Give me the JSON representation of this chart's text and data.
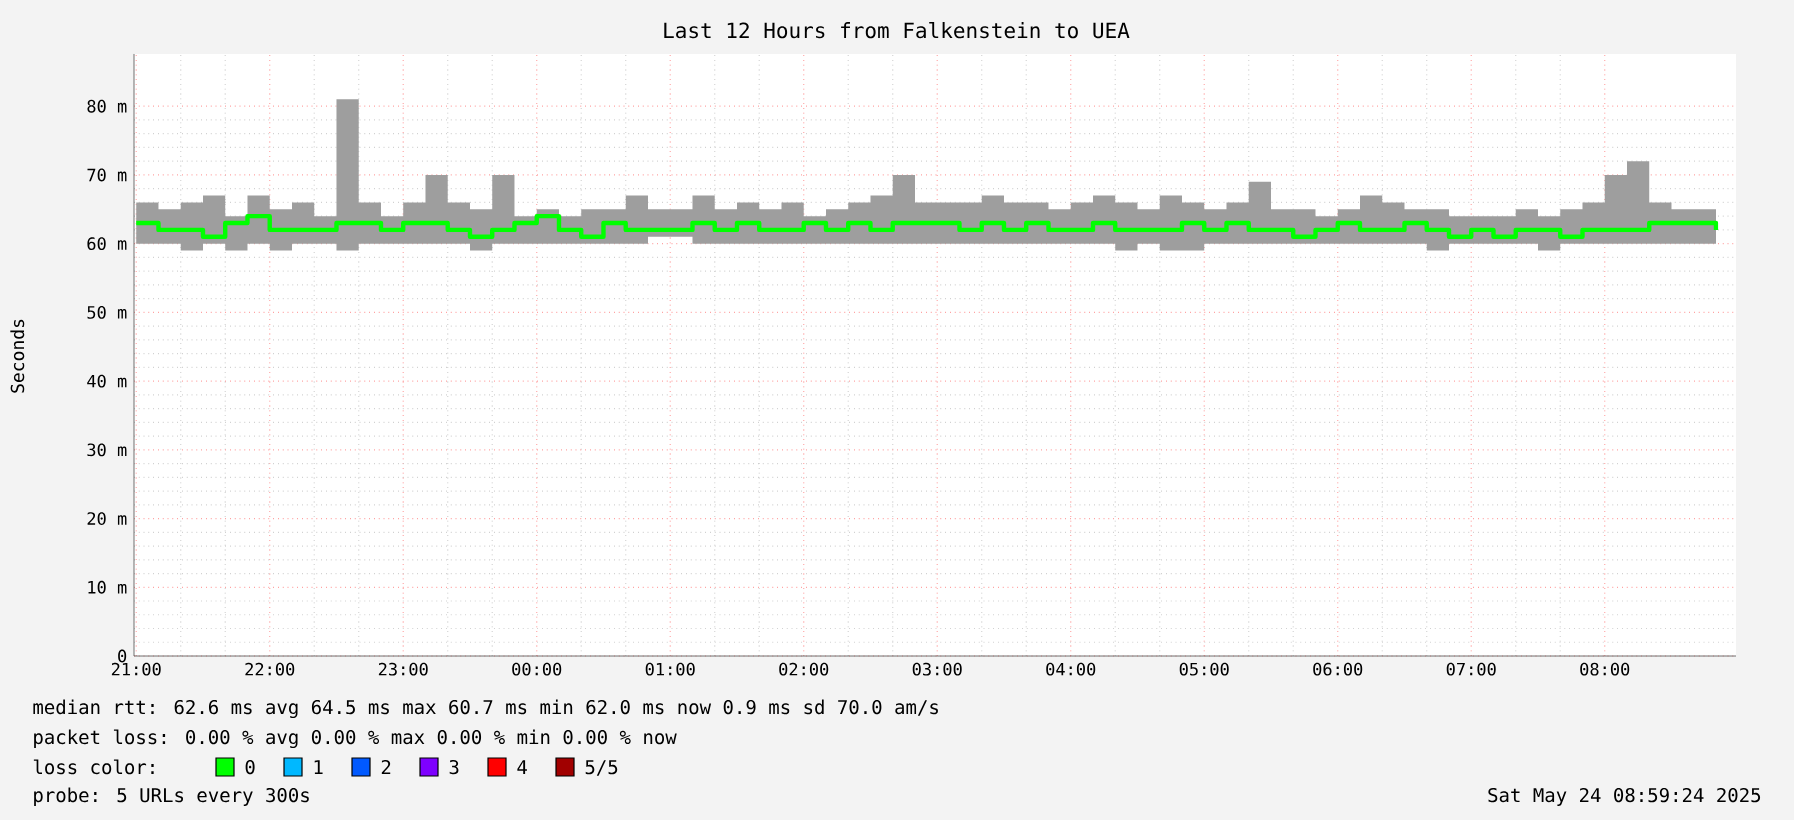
{
  "chart_data": {
    "type": "step",
    "title": "Last 12 Hours from Falkenstein to UEA",
    "ylabel": "Seconds",
    "x": [
      "2025-05-23T21:00",
      "2025-05-23T21:10",
      "2025-05-23T21:20",
      "2025-05-23T21:30",
      "2025-05-23T21:40",
      "2025-05-23T21:50",
      "2025-05-23T22:00",
      "2025-05-23T22:10",
      "2025-05-23T22:20",
      "2025-05-23T22:30",
      "2025-05-23T22:40",
      "2025-05-23T22:50",
      "2025-05-23T23:00",
      "2025-05-23T23:10",
      "2025-05-23T23:20",
      "2025-05-23T23:30",
      "2025-05-23T23:40",
      "2025-05-23T23:50",
      "2025-05-24T00:00",
      "2025-05-24T00:10",
      "2025-05-24T00:20",
      "2025-05-24T00:30",
      "2025-05-24T00:40",
      "2025-05-24T00:50",
      "2025-05-24T01:00",
      "2025-05-24T01:10",
      "2025-05-24T01:20",
      "2025-05-24T01:30",
      "2025-05-24T01:40",
      "2025-05-24T01:50",
      "2025-05-24T02:00",
      "2025-05-24T02:10",
      "2025-05-24T02:20",
      "2025-05-24T02:30",
      "2025-05-24T02:40",
      "2025-05-24T02:50",
      "2025-05-24T03:00",
      "2025-05-24T03:10",
      "2025-05-24T03:20",
      "2025-05-24T03:30",
      "2025-05-24T03:40",
      "2025-05-24T03:50",
      "2025-05-24T04:00",
      "2025-05-24T04:10",
      "2025-05-24T04:20",
      "2025-05-24T04:30",
      "2025-05-24T04:40",
      "2025-05-24T04:50",
      "2025-05-24T05:00",
      "2025-05-24T05:10",
      "2025-05-24T05:20",
      "2025-05-24T05:30",
      "2025-05-24T05:40",
      "2025-05-24T05:50",
      "2025-05-24T06:00",
      "2025-05-24T06:10",
      "2025-05-24T06:20",
      "2025-05-24T06:30",
      "2025-05-24T06:40",
      "2025-05-24T06:50",
      "2025-05-24T07:00",
      "2025-05-24T07:10",
      "2025-05-24T07:20",
      "2025-05-24T07:30",
      "2025-05-24T07:40",
      "2025-05-24T07:50",
      "2025-05-24T08:00",
      "2025-05-24T08:10",
      "2025-05-24T08:20",
      "2025-05-24T08:30",
      "2025-05-24T08:40",
      "2025-05-24T08:50"
    ],
    "series": [
      {
        "name": "0",
        "color": "#00ff00",
        "values": [
          63,
          62,
          62,
          61,
          63,
          64,
          62,
          62,
          62,
          63,
          63,
          62,
          63,
          63,
          62,
          61,
          62,
          63,
          64,
          62,
          61,
          63,
          62,
          62,
          62,
          63,
          62,
          63,
          62,
          62,
          63,
          62,
          63,
          62,
          63,
          63,
          63,
          62,
          63,
          62,
          63,
          62,
          62,
          63,
          62,
          62,
          62,
          63,
          62,
          63,
          62,
          62,
          61,
          62,
          63,
          62,
          62,
          63,
          62,
          61,
          62,
          61,
          62,
          62,
          61,
          62,
          62,
          62,
          63,
          63,
          63,
          62
        ],
        "lower": [
          60,
          60,
          59,
          60,
          59,
          60,
          59,
          60,
          60,
          59,
          60,
          60,
          60,
          60,
          60,
          59,
          60,
          60,
          60,
          60,
          60,
          60,
          60,
          61,
          61,
          60,
          60,
          60,
          60,
          60,
          60,
          60,
          60,
          60,
          60,
          60,
          60,
          60,
          60,
          60,
          60,
          60,
          60,
          60,
          59,
          60,
          59,
          59,
          60,
          60,
          60,
          60,
          60,
          60,
          60,
          60,
          60,
          60,
          59,
          60,
          60,
          60,
          60,
          59,
          60,
          60,
          60,
          60,
          60,
          60,
          60,
          60
        ],
        "upper": [
          66,
          65,
          66,
          67,
          64,
          67,
          65,
          66,
          64,
          81,
          66,
          64,
          66,
          70,
          66,
          65,
          70,
          64,
          65,
          64,
          65,
          65,
          67,
          65,
          65,
          67,
          65,
          66,
          65,
          66,
          64,
          65,
          66,
          67,
          70,
          66,
          66,
          66,
          67,
          66,
          66,
          65,
          66,
          67,
          66,
          65,
          67,
          66,
          65,
          66,
          69,
          65,
          65,
          64,
          65,
          67,
          66,
          65,
          65,
          64,
          64,
          64,
          65,
          64,
          65,
          66,
          70,
          72,
          66,
          65,
          65,
          64
        ]
      },
      {
        "name": "1",
        "color": "#00b8ff",
        "values": [
          null,
          null,
          null,
          null,
          null,
          null,
          null,
          null,
          null,
          null,
          null,
          null,
          null,
          null,
          null,
          null,
          null,
          null,
          null,
          null,
          null,
          null,
          null,
          null,
          null,
          null,
          null,
          null,
          null,
          null,
          null,
          null,
          null,
          null,
          null,
          null,
          null,
          null,
          null,
          null,
          null,
          null,
          null,
          null,
          null,
          null,
          null,
          null,
          null,
          null,
          null,
          null,
          null,
          null,
          null,
          null,
          null,
          null,
          null,
          null,
          null,
          null,
          null,
          null,
          null,
          null,
          null,
          null,
          null,
          null,
          null,
          null
        ]
      },
      {
        "name": "2",
        "color": "#0059ff",
        "values": [
          null,
          null,
          null,
          null,
          null,
          null,
          null,
          null,
          null,
          null,
          null,
          null,
          null,
          null,
          null,
          null,
          null,
          null,
          null,
          null,
          null,
          null,
          null,
          null,
          null,
          null,
          null,
          null,
          null,
          null,
          null,
          null,
          null,
          null,
          null,
          null,
          null,
          null,
          null,
          null,
          null,
          null,
          null,
          null,
          null,
          null,
          null,
          null,
          null,
          null,
          null,
          null,
          null,
          null,
          null,
          null,
          null,
          null,
          null,
          null,
          null,
          null,
          null,
          null,
          null,
          null,
          null,
          null,
          null,
          null,
          null,
          null
        ]
      },
      {
        "name": "3",
        "color": "#7e00ff",
        "values": [
          null,
          null,
          null,
          null,
          null,
          null,
          null,
          null,
          null,
          null,
          null,
          null,
          null,
          null,
          null,
          null,
          null,
          null,
          null,
          null,
          null,
          null,
          null,
          null,
          null,
          null,
          null,
          null,
          null,
          null,
          null,
          null,
          null,
          null,
          null,
          null,
          null,
          null,
          null,
          null,
          null,
          null,
          null,
          null,
          null,
          null,
          null,
          null,
          null,
          null,
          null,
          null,
          null,
          null,
          null,
          null,
          null,
          null,
          null,
          null,
          null,
          null,
          null,
          null,
          null,
          null,
          null,
          null,
          null,
          null,
          null,
          null
        ]
      },
      {
        "name": "4",
        "color": "#ff0000",
        "values": [
          null,
          null,
          null,
          null,
          null,
          null,
          null,
          null,
          null,
          null,
          null,
          null,
          null,
          null,
          null,
          null,
          null,
          null,
          null,
          null,
          null,
          null,
          null,
          null,
          null,
          null,
          null,
          null,
          null,
          null,
          null,
          null,
          null,
          null,
          null,
          null,
          null,
          null,
          null,
          null,
          null,
          null,
          null,
          null,
          null,
          null,
          null,
          null,
          null,
          null,
          null,
          null,
          null,
          null,
          null,
          null,
          null,
          null,
          null,
          null,
          null,
          null,
          null,
          null,
          null,
          null,
          null,
          null,
          null,
          null,
          null,
          null
        ]
      },
      {
        "name": "5/5",
        "color": "#a10000",
        "values": [
          null,
          null,
          null,
          null,
          null,
          null,
          null,
          null,
          null,
          null,
          null,
          null,
          null,
          null,
          null,
          null,
          null,
          null,
          null,
          null,
          null,
          null,
          null,
          null,
          null,
          null,
          null,
          null,
          null,
          null,
          null,
          null,
          null,
          null,
          null,
          null,
          null,
          null,
          null,
          null,
          null,
          null,
          null,
          null,
          null,
          null,
          null,
          null,
          null,
          null,
          null,
          null,
          null,
          null,
          null,
          null,
          null,
          null,
          null,
          null,
          null,
          null,
          null,
          null,
          null,
          null,
          null,
          null,
          null,
          null,
          null,
          null
        ]
      }
    ],
    "xlim": [
      "2025-05-23T20:59",
      "2025-05-24T08:59"
    ],
    "ylim": [
      0,
      87.6
    ],
    "xticks": [
      {
        "value": "2025-05-23T21:00",
        "label": "21:00"
      },
      {
        "value": "2025-05-23T22:00",
        "label": "22:00"
      },
      {
        "value": "2025-05-23T23:00",
        "label": "23:00"
      },
      {
        "value": "2025-05-24T00:00",
        "label": "00:00"
      },
      {
        "value": "2025-05-24T01:00",
        "label": "01:00"
      },
      {
        "value": "2025-05-24T02:00",
        "label": "02:00"
      },
      {
        "value": "2025-05-24T03:00",
        "label": "03:00"
      },
      {
        "value": "2025-05-24T04:00",
        "label": "04:00"
      },
      {
        "value": "2025-05-24T05:00",
        "label": "05:00"
      },
      {
        "value": "2025-05-24T06:00",
        "label": "06:00"
      },
      {
        "value": "2025-05-24T07:00",
        "label": "07:00"
      },
      {
        "value": "2025-05-24T08:00",
        "label": "08:00"
      }
    ],
    "yticks": [
      0,
      {
        "value": 10,
        "label": "10 m"
      },
      {
        "value": 20,
        "label": "20 m"
      },
      {
        "value": 30,
        "label": "30 m"
      },
      {
        "value": 40,
        "label": "40 m"
      },
      {
        "value": 50,
        "label": "50 m"
      },
      {
        "value": 60,
        "label": "60 m"
      },
      {
        "value": 70,
        "label": "70 m"
      },
      {
        "value": 80,
        "label": "80 m"
      }
    ],
    "grid": true,
    "legend": "bottom",
    "annotations": [
      "median rtt:  62.6 ms avg  64.5 ms max  60.7 ms min  62.0 ms now  0.9 ms sd  70.0   am/s",
      "packet loss: 0.00 % avg  0.00 % max  0.00 % min  0.00 % now",
      "loss color:",
      "probe:       5 URLs every 300s",
      "Sat May 24 08:59:24 2025"
    ]
  }
}
